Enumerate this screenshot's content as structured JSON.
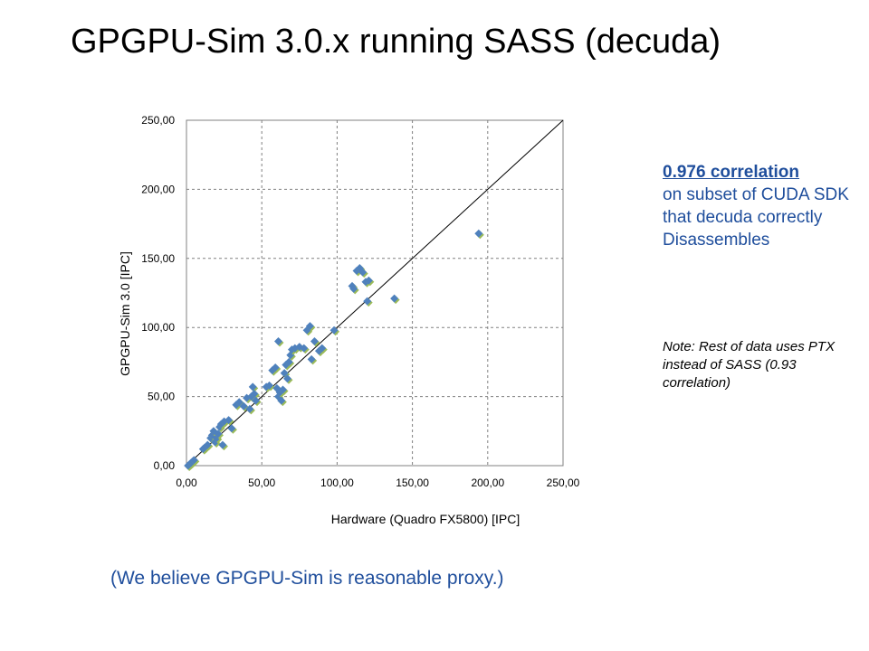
{
  "slide": {
    "title": "GPGPU-Sim 3.0.x running SASS (decuda)",
    "note_headline": "0.976 correlation ",
    "note_body": "on subset of CUDA SDK that decuda correctly Disassembles",
    "italic_note": "Note: Rest of data uses PTX instead of SASS (0.93 correlation)",
    "footer": "(We believe GPGPU-Sim is reasonable proxy.)"
  },
  "colors": {
    "text_blue": "#1f4e9c",
    "marker_fill": "#4f81bd",
    "marker_shadow": "#9bbb59",
    "grid": "#808080",
    "diagonal": "#000000"
  },
  "chart_data": {
    "type": "scatter",
    "title": "",
    "xlabel": "Hardware (Quadro FX5800)  [IPC]",
    "ylabel": "GPGPU-Sim  3.0 [IPC]",
    "xlim": [
      0,
      250
    ],
    "ylim": [
      0,
      250
    ],
    "x_ticks": [
      "0,00",
      "50,00",
      "100,00",
      "150,00",
      "200,00",
      "250,00"
    ],
    "y_ticks": [
      "0,00",
      "50,00",
      "100,00",
      "150,00",
      "200,00",
      "250,00"
    ],
    "x_tick_values": [
      0,
      50,
      100,
      150,
      200,
      250
    ],
    "y_tick_values": [
      0,
      50,
      100,
      150,
      200,
      250
    ],
    "grid": "dashed major gridlines",
    "reference_line": "y = x",
    "marker": "diamond",
    "points": [
      [
        1,
        0
      ],
      [
        2,
        1
      ],
      [
        3,
        2
      ],
      [
        4,
        3
      ],
      [
        5,
        4
      ],
      [
        11,
        12
      ],
      [
        12,
        13
      ],
      [
        14,
        15
      ],
      [
        16,
        20
      ],
      [
        17,
        22
      ],
      [
        18,
        25
      ],
      [
        19,
        17
      ],
      [
        20,
        20
      ],
      [
        21,
        23
      ],
      [
        22,
        28
      ],
      [
        23,
        30
      ],
      [
        24,
        15
      ],
      [
        25,
        32
      ],
      [
        28,
        33
      ],
      [
        30,
        27
      ],
      [
        33,
        44
      ],
      [
        35,
        46
      ],
      [
        38,
        43
      ],
      [
        40,
        49
      ],
      [
        42,
        41
      ],
      [
        43,
        50
      ],
      [
        44,
        57
      ],
      [
        45,
        52
      ],
      [
        46,
        47
      ],
      [
        53,
        57
      ],
      [
        55,
        58
      ],
      [
        57,
        69
      ],
      [
        59,
        71
      ],
      [
        60,
        56
      ],
      [
        61,
        50
      ],
      [
        62,
        53
      ],
      [
        63,
        47
      ],
      [
        64,
        55
      ],
      [
        65,
        67
      ],
      [
        66,
        73
      ],
      [
        67,
        63
      ],
      [
        68,
        75
      ],
      [
        69,
        80
      ],
      [
        70,
        84
      ],
      [
        72,
        85
      ],
      [
        75,
        86
      ],
      [
        78,
        85
      ],
      [
        80,
        98
      ],
      [
        82,
        101
      ],
      [
        83,
        77
      ],
      [
        85,
        90
      ],
      [
        88,
        83
      ],
      [
        90,
        85
      ],
      [
        98,
        98
      ],
      [
        61,
        90
      ],
      [
        110,
        130
      ],
      [
        111,
        128
      ],
      [
        113,
        141
      ],
      [
        115,
        143
      ],
      [
        117,
        140
      ],
      [
        119,
        133
      ],
      [
        120,
        119
      ],
      [
        121,
        134
      ],
      [
        138,
        121
      ],
      [
        194,
        168
      ]
    ]
  }
}
